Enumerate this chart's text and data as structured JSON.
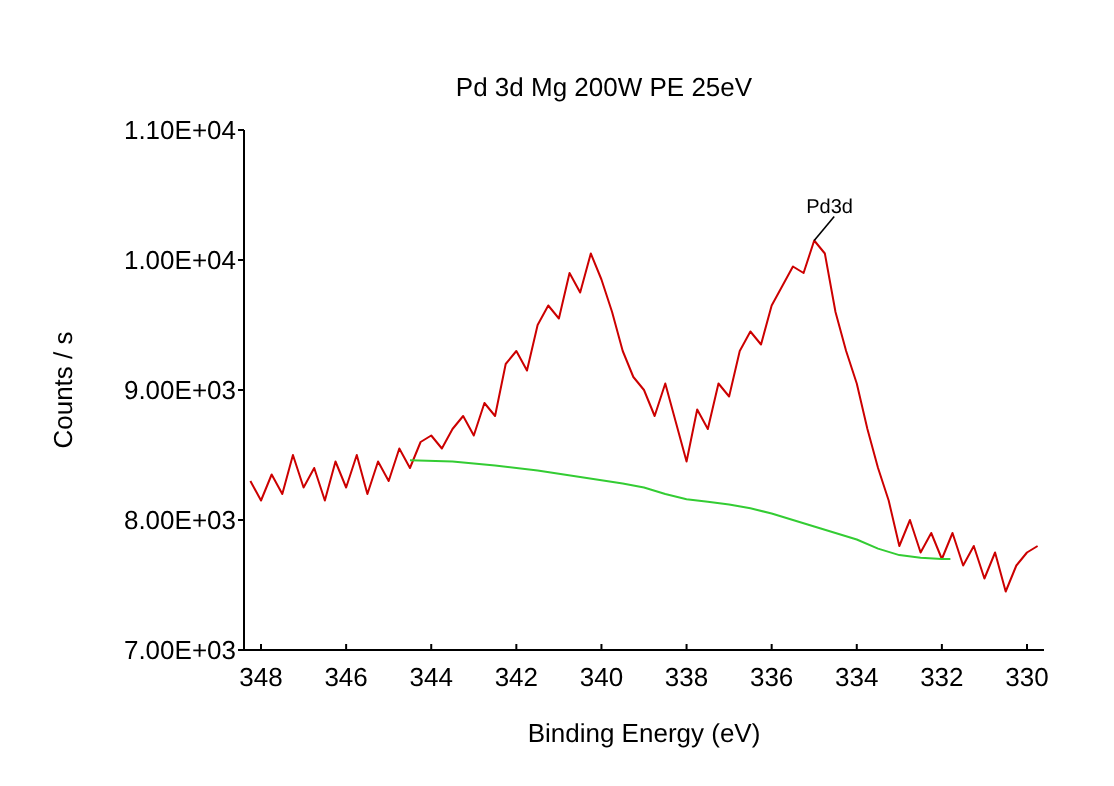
{
  "chart_data": {
    "type": "line",
    "title": "Pd 3d  Mg 200W PE 25eV",
    "xlabel": "Binding Energy (eV)",
    "ylabel": "Counts / s",
    "xlim": [
      348.4,
      329.6
    ],
    "xticks": [
      348,
      346,
      344,
      342,
      340,
      338,
      336,
      334,
      332,
      330
    ],
    "ylim": [
      7000,
      11000
    ],
    "yticks": [
      {
        "value": 7000,
        "label": "7.00E+03"
      },
      {
        "value": 8000,
        "label": "8.00E+03"
      },
      {
        "value": 9000,
        "label": "9.00E+03"
      },
      {
        "value": 10000,
        "label": "1.00E+04"
      },
      {
        "value": 11000,
        "label": "1.10E+04"
      }
    ],
    "grid": false,
    "marker": "none",
    "line_style": "solid",
    "annotations": [
      {
        "text": "Pd3d",
        "x": 335,
        "y": 10150
      }
    ],
    "series": [
      {
        "color": "#cc0000",
        "x": [
          348.25,
          348.0,
          347.75,
          347.5,
          347.25,
          347.0,
          346.75,
          346.5,
          346.25,
          346.0,
          345.75,
          345.5,
          345.25,
          345.0,
          344.75,
          344.5,
          344.25,
          344.0,
          343.75,
          343.5,
          343.25,
          343.0,
          342.75,
          342.5,
          342.25,
          342.0,
          341.75,
          341.5,
          341.25,
          341.0,
          340.75,
          340.5,
          340.25,
          340.0,
          339.75,
          339.5,
          339.25,
          339.0,
          338.75,
          338.5,
          338.25,
          338.0,
          337.75,
          337.5,
          337.25,
          337.0,
          336.75,
          336.5,
          336.25,
          336.0,
          335.75,
          335.5,
          335.25,
          335.0,
          334.75,
          334.5,
          334.25,
          334.0,
          333.75,
          333.5,
          333.25,
          333.0,
          332.75,
          332.5,
          332.25,
          332.0,
          331.75,
          331.5,
          331.25,
          331.0,
          330.75,
          330.5,
          330.25,
          330.0,
          329.75
        ],
        "values": [
          8300,
          8150,
          8350,
          8200,
          8500,
          8250,
          8400,
          8150,
          8450,
          8250,
          8500,
          8200,
          8450,
          8300,
          8550,
          8400,
          8600,
          8650,
          8550,
          8700,
          8800,
          8650,
          8900,
          8800,
          9200,
          9300,
          9150,
          9500,
          9650,
          9550,
          9900,
          9750,
          10050,
          9850,
          9600,
          9300,
          9100,
          9000,
          8800,
          9050,
          8750,
          8450,
          8850,
          8700,
          9050,
          8950,
          9300,
          9450,
          9350,
          9650,
          9800,
          9950,
          9900,
          10150,
          10050,
          9600,
          9300,
          9050,
          8700,
          8400,
          8150,
          7800,
          8000,
          7750,
          7900,
          7700,
          7900,
          7650,
          7800,
          7550,
          7750,
          7450,
          7650,
          7750,
          7800
        ]
      },
      {
        "color": "#33cc33",
        "x": [
          344.5,
          343.5,
          342.5,
          341.5,
          340.5,
          339.5,
          339,
          338.5,
          338,
          337.5,
          337,
          336.5,
          336,
          335.5,
          335,
          334.5,
          334,
          333.5,
          333,
          332.5,
          332,
          331.8
        ],
        "values": [
          8460,
          8450,
          8420,
          8380,
          8330,
          8280,
          8250,
          8200,
          8160,
          8140,
          8120,
          8090,
          8050,
          8000,
          7950,
          7900,
          7850,
          7780,
          7730,
          7710,
          7700,
          7700
        ]
      }
    ]
  }
}
